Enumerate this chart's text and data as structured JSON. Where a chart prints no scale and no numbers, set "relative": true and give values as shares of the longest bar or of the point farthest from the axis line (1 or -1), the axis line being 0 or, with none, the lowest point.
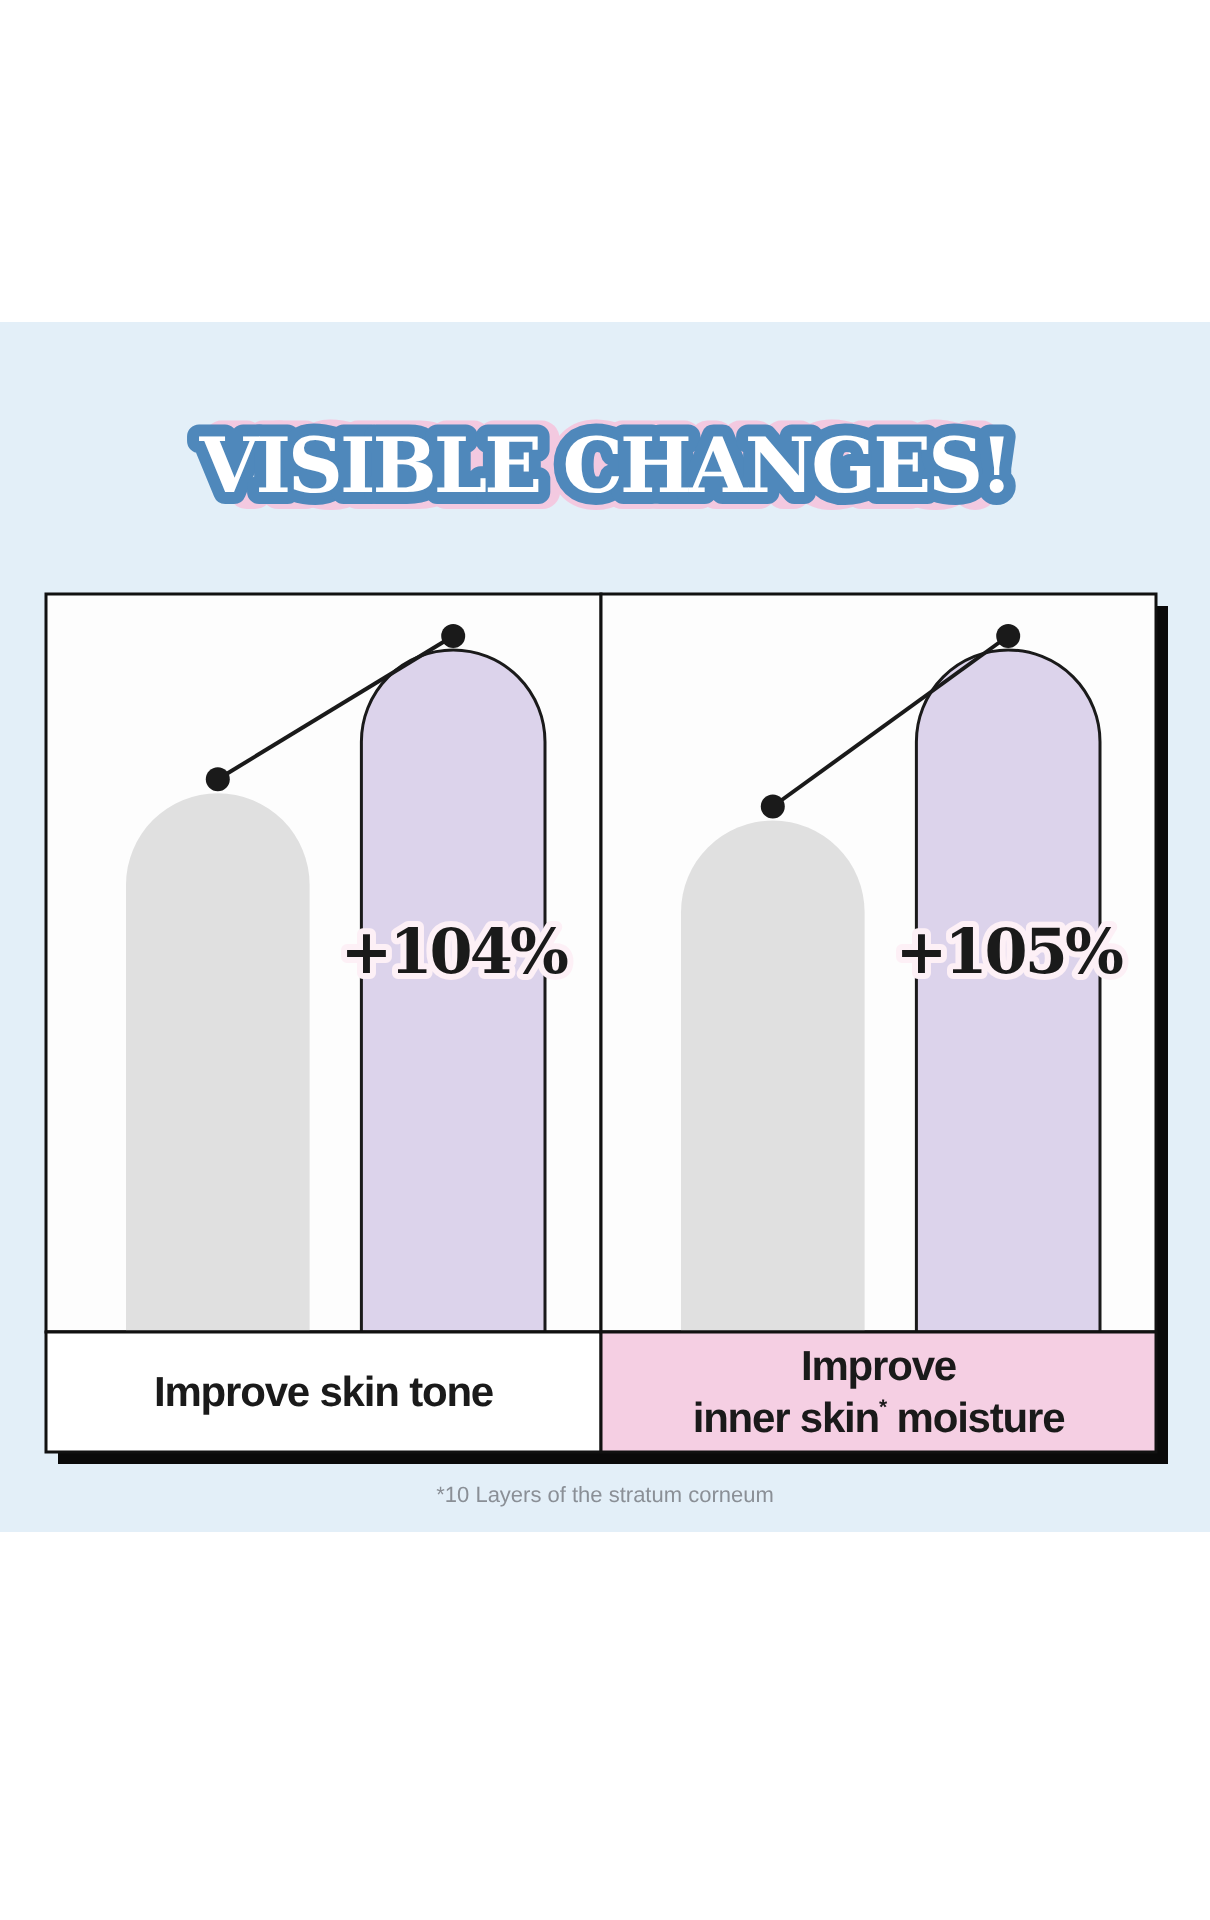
{
  "chart_data": [
    {
      "type": "bar",
      "relative": true,
      "title": "VISIBLE CHANGES!",
      "xlabel": "Improve skin tone",
      "categories": [
        null,
        null
      ],
      "annotations": [
        {
          "text": "+104%"
        }
      ],
      "series": [
        {
          "colors": [
            "#e0e0e0",
            "#dcd3eb"
          ],
          "values": [
            0.79,
            1
          ]
        }
      ]
    },
    {
      "type": "bar",
      "relative": true,
      "xlabel": "Improve\ninner skin$^{*}$ moisture",
      "categories": [
        null,
        null
      ],
      "annotations": [
        {
          "text": "+105%"
        },
        "*10 Layers of the stratum corneum"
      ],
      "series": [
        {
          "colors": [
            "#e0e0e0",
            "#dcd3eb"
          ],
          "values": [
            0.75,
            1
          ]
        }
      ]
    }
  ]
}
